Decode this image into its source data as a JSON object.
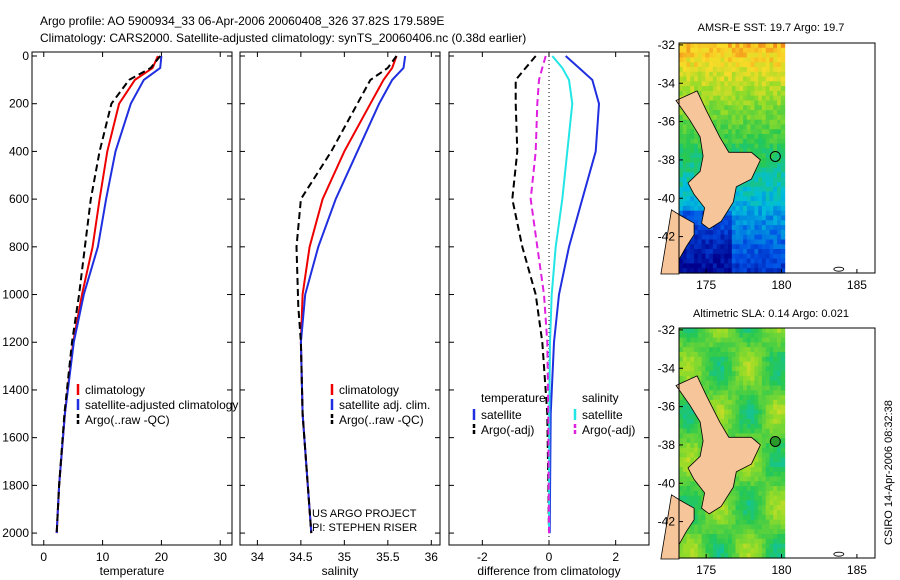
{
  "header": {
    "line1": "Argo profile: AO 5900934_33 06-Apr-2006 20060408_326 37.82S 179.589E",
    "line2": "Climatology: CARS2000. Satellite-adjusted climatology: synTS_20060406.nc (0.38d earlier)"
  },
  "credit": "CSIRO 14-Apr-2006 08:32:38",
  "colors": {
    "red": "#ee0000",
    "blue": "#1f2fe0",
    "black": "#000000",
    "cyan": "#22e5e5",
    "magenta": "#e020e0"
  },
  "chart_data": [
    {
      "id": "temperature",
      "type": "line",
      "xlabel": "temperature",
      "xlim": [
        -2,
        32
      ],
      "ylim": [
        0,
        2050
      ],
      "xticks": [
        "0",
        "10",
        "20",
        "30"
      ],
      "xtick_values": [
        0,
        10,
        20,
        30
      ],
      "yticks": [
        "0",
        "200",
        "400",
        "600",
        "800",
        "1000",
        "1200",
        "1400",
        "1600",
        "1800",
        "2000"
      ],
      "ytick_values": [
        0,
        200,
        400,
        600,
        800,
        1000,
        1200,
        1400,
        1600,
        1800,
        2000
      ],
      "legend": [
        "climatology",
        "satellite-adjusted climatology",
        "Argo(..raw -QC)"
      ],
      "series": [
        {
          "name": "climatology",
          "color": "red",
          "dash": "none",
          "x": [
            19.4,
            18.5,
            15.5,
            12.8,
            10.8,
            9.5,
            8.3,
            6.5,
            5.0,
            3.6,
            2.6,
            2.2
          ],
          "y": [
            0,
            50,
            100,
            200,
            400,
            600,
            800,
            1000,
            1200,
            1500,
            1800,
            2000
          ]
        },
        {
          "name": "satellite-adjusted climatology",
          "color": "blue",
          "dash": "none",
          "x": [
            20.0,
            19.8,
            17.0,
            14.8,
            12.2,
            10.6,
            9.2,
            6.8,
            5.1,
            3.6,
            2.6,
            2.2
          ],
          "y": [
            0,
            50,
            100,
            200,
            400,
            600,
            800,
            1000,
            1200,
            1500,
            1800,
            2000
          ]
        },
        {
          "name": "Argo(..raw -QC)",
          "color": "black",
          "dash": "7,4",
          "x": [
            19.8,
            18.2,
            14.5,
            11.5,
            9.5,
            8.0,
            7.0,
            6.0,
            4.8,
            3.5,
            2.6,
            2.2
          ],
          "y": [
            0,
            50,
            100,
            200,
            400,
            600,
            800,
            1000,
            1200,
            1500,
            1800,
            2000
          ]
        }
      ]
    },
    {
      "id": "salinity",
      "type": "line",
      "xlabel": "salinity",
      "xlim": [
        33.8,
        36.1
      ],
      "ylim": [
        0,
        2050
      ],
      "xticks": [
        "34",
        "34.5",
        "35",
        "35.5",
        "36"
      ],
      "xtick_values": [
        34,
        34.5,
        35,
        35.5,
        36
      ],
      "legend": [
        "climatology",
        "satellite adj. clim.",
        "Argo(..raw -QC)"
      ],
      "annotation": [
        "US ARGO PROJECT",
        "PI: STEPHEN RISER"
      ],
      "series": [
        {
          "name": "climatology",
          "color": "red",
          "dash": "none",
          "x": [
            35.6,
            35.55,
            35.45,
            35.3,
            35.0,
            34.75,
            34.6,
            34.52,
            34.5,
            34.52,
            34.58,
            34.62
          ],
          "y": [
            0,
            50,
            100,
            200,
            400,
            600,
            800,
            1000,
            1200,
            1500,
            1800,
            2000
          ]
        },
        {
          "name": "satellite adj. clim.",
          "color": "blue",
          "dash": "none",
          "x": [
            35.7,
            35.68,
            35.55,
            35.4,
            35.15,
            34.9,
            34.7,
            34.55,
            34.5,
            34.52,
            34.58,
            34.62
          ],
          "y": [
            0,
            50,
            100,
            200,
            400,
            600,
            800,
            1000,
            1200,
            1500,
            1800,
            2000
          ]
        },
        {
          "name": "Argo(..raw -QC)",
          "color": "black",
          "dash": "7,4",
          "x": [
            35.6,
            35.5,
            35.3,
            35.15,
            34.85,
            34.5,
            34.45,
            34.47,
            34.5,
            34.52,
            34.58,
            34.62
          ],
          "y": [
            0,
            50,
            100,
            200,
            400,
            600,
            800,
            1050,
            1200,
            1500,
            1800,
            2000
          ]
        }
      ]
    },
    {
      "id": "difference",
      "type": "line",
      "xlabel": "difference from climatology",
      "xlim": [
        -3,
        3
      ],
      "ylim": [
        0,
        2050
      ],
      "xticks": [
        "-2",
        "0",
        "2"
      ],
      "xtick_values": [
        -2,
        0,
        2
      ],
      "legend_headers": [
        "temperature",
        "salinity"
      ],
      "legend": [
        "satellite",
        "Argo(-adj)",
        "satellite",
        "Argo(-adj)"
      ],
      "zero_line": true,
      "series": [
        {
          "name": "temperature satellite",
          "color": "blue",
          "dash": "none",
          "x": [
            0.5,
            0.9,
            1.3,
            1.5,
            1.4,
            1.0,
            0.6,
            0.3,
            0.15,
            0.05,
            0.02
          ],
          "y": [
            0,
            50,
            100,
            200,
            400,
            600,
            800,
            1000,
            1200,
            1500,
            2000
          ]
        },
        {
          "name": "temperature Argo(-adj)",
          "color": "black",
          "dash": "7,4",
          "x": [
            -0.4,
            -0.7,
            -1.0,
            -1.0,
            -0.95,
            -1.1,
            -0.8,
            -0.4,
            -0.2,
            -0.05,
            0
          ],
          "y": [
            0,
            50,
            100,
            200,
            400,
            600,
            800,
            1000,
            1200,
            1500,
            2000
          ]
        },
        {
          "name": "salinity satellite",
          "color": "cyan",
          "dash": "none",
          "x": [
            0.1,
            0.4,
            0.6,
            0.7,
            0.55,
            0.4,
            0.2,
            0.08,
            0.03,
            0.01,
            0
          ],
          "y": [
            0,
            50,
            100,
            200,
            400,
            600,
            800,
            1000,
            1200,
            1500,
            2000
          ]
        },
        {
          "name": "salinity Argo(-adj)",
          "color": "magenta",
          "dash": "7,4",
          "x": [
            -0.1,
            -0.2,
            -0.3,
            -0.35,
            -0.4,
            -0.55,
            -0.35,
            -0.15,
            -0.05,
            -0.02,
            0
          ],
          "y": [
            0,
            50,
            100,
            200,
            400,
            600,
            800,
            1000,
            1200,
            1500,
            2000
          ]
        }
      ]
    },
    {
      "id": "sst_map",
      "type": "heatmap",
      "title": "AMSR-E SST: 19.7 Argo: 19.7",
      "xticks": [
        "175",
        "180",
        "185"
      ],
      "xtick_values": [
        175,
        180,
        185
      ],
      "yticks": [
        "-32",
        "-34",
        "-36",
        "-38",
        "-40",
        "-42"
      ],
      "ytick_values": [
        -32,
        -34,
        -36,
        -38,
        -40,
        -42
      ],
      "xlim": [
        173.2,
        186.2
      ],
      "ylim": [
        -43.9,
        -31.9
      ],
      "marker": {
        "lon": 179.589,
        "lat": -37.82
      }
    },
    {
      "id": "sla_map",
      "type": "heatmap",
      "title": "Altimetric SLA: 0.14 Argo: 0.021",
      "xticks": [
        "175",
        "180",
        "185"
      ],
      "xtick_values": [
        175,
        180,
        185
      ],
      "yticks": [
        "-32",
        "-34",
        "-36",
        "-38",
        "-40",
        "-42"
      ],
      "ytick_values": [
        -32,
        -34,
        -36,
        -38,
        -40,
        -42
      ],
      "xlim": [
        173.2,
        186.2
      ],
      "ylim": [
        -43.9,
        -31.9
      ],
      "marker": {
        "lon": 179.589,
        "lat": -37.82
      }
    }
  ]
}
